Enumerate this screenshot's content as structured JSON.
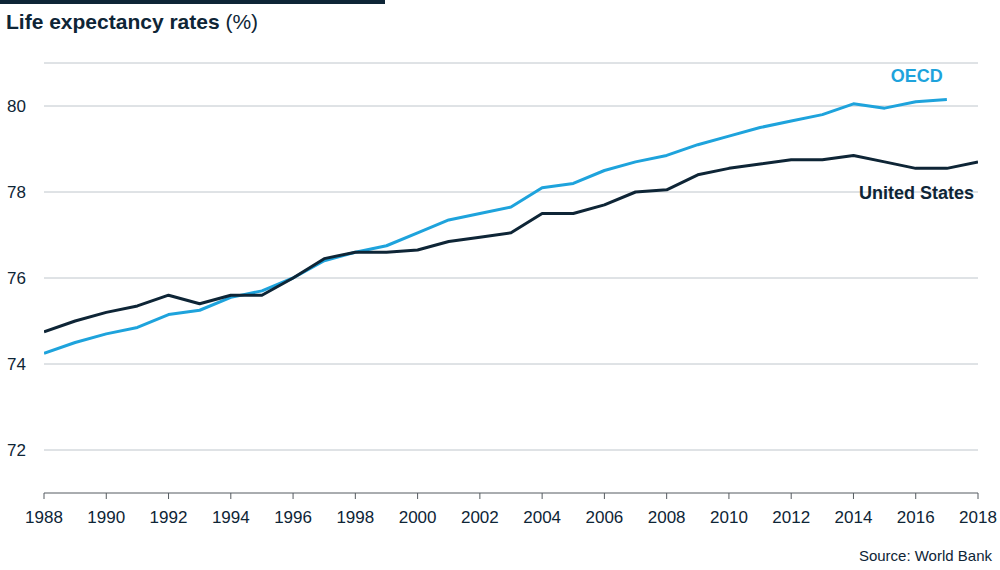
{
  "chart_data": {
    "type": "line",
    "title": "Life expectancy rates (%)",
    "source": "Source: World Bank",
    "x": [
      1988,
      1989,
      1990,
      1991,
      1992,
      1993,
      1994,
      1995,
      1996,
      1997,
      1998,
      1999,
      2000,
      2001,
      2002,
      2003,
      2004,
      2005,
      2006,
      2007,
      2008,
      2009,
      2010,
      2011,
      2012,
      2013,
      2014,
      2015,
      2016,
      2017,
      2018
    ],
    "series": [
      {
        "name": "OECD",
        "color": "#1ea3dc",
        "values": [
          74.25,
          74.5,
          74.7,
          74.85,
          75.15,
          75.25,
          75.55,
          75.7,
          76.0,
          76.4,
          76.6,
          76.75,
          77.05,
          77.35,
          77.5,
          77.65,
          78.1,
          78.2,
          78.5,
          78.7,
          78.85,
          79.1,
          79.3,
          79.5,
          79.65,
          79.8,
          80.05,
          79.95,
          80.1,
          80.15,
          null
        ]
      },
      {
        "name": "United States",
        "color": "#0e2536",
        "values": [
          74.75,
          75.0,
          75.2,
          75.35,
          75.6,
          75.4,
          75.6,
          75.6,
          76.0,
          76.45,
          76.6,
          76.6,
          76.65,
          76.85,
          76.95,
          77.05,
          77.5,
          77.5,
          77.7,
          78.0,
          78.05,
          78.4,
          78.55,
          78.65,
          78.75,
          78.75,
          78.85,
          78.7,
          78.55,
          78.55,
          78.7
        ]
      }
    ],
    "xlim": [
      1988,
      2018
    ],
    "xticks": [
      1988,
      1990,
      1992,
      1994,
      1996,
      1998,
      2000,
      2002,
      2004,
      2006,
      2008,
      2010,
      2012,
      2014,
      2016,
      2018
    ],
    "ylim": [
      71,
      81
    ],
    "yticks": [
      72,
      74,
      76,
      78,
      80
    ],
    "grid": true
  }
}
